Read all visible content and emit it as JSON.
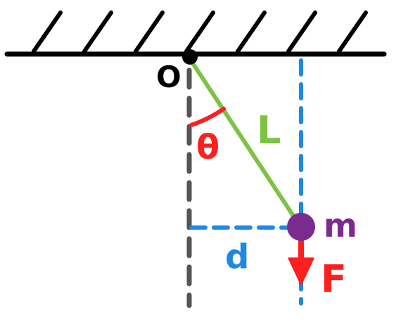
{
  "labels": {
    "origin": "O",
    "angle": "θ",
    "length": "L",
    "distance": "d",
    "mass": "m",
    "force": "F"
  },
  "colors": {
    "ceiling": "#000000",
    "vertical_axis": "#555555",
    "rod": "#7dc242",
    "angle": "#ff1f1f",
    "guides": "#1e88e5",
    "mass": "#7b2a8e",
    "force": "#ff1f1f",
    "origin": "#000000"
  }
}
